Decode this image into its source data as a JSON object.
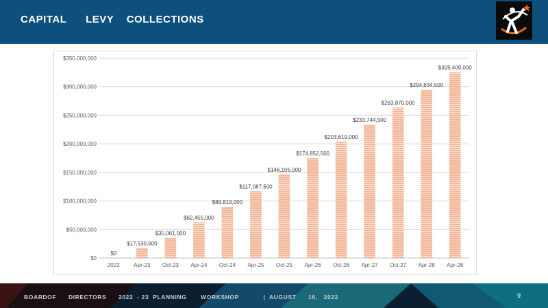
{
  "header": {
    "title": "CAPITAL      LEVY    COLLECTIONS"
  },
  "footer": {
    "text": "BOARDOF      DIRECTORS      2022  - 23  PLANNING       WORKSHOP            |  AUGUST      16,   2022",
    "page_number": "9"
  },
  "colors": {
    "header_bg": "#0d4f7d",
    "bar_fill": "#f2b596",
    "bar_stripe": "#ffffff",
    "footer_bg": "#0c1f30"
  },
  "chart_data": {
    "type": "bar",
    "title": "",
    "xlabel": "",
    "ylabel": "",
    "categories": [
      "2022",
      "Apr-23",
      "Oct-23",
      "Apr-24",
      "Oct-24",
      "Apr-25",
      "Oct-25",
      "Apr-26",
      "Oct-26",
      "Apr-27",
      "Oct-27",
      "Apr-28",
      "Apr-28"
    ],
    "values": [
      0,
      17530500,
      35061000,
      62455000,
      89819000,
      117087500,
      146105000,
      174852500,
      203619000,
      233744500,
      263870000,
      294634500,
      325409000
    ],
    "data_labels": [
      "$0",
      "$17,530,500",
      "$35,061,000",
      "$62,455,000",
      "$89,819,000",
      "$117,087,500",
      "$146,105,000",
      "$174,852,500",
      "$203,619,000",
      "$233,744,500",
      "$263,870,000",
      "$294,634,500",
      "$325,409,000"
    ],
    "ylim": [
      0,
      350000000
    ],
    "y_ticks": [
      0,
      50000000,
      100000000,
      150000000,
      200000000,
      250000000,
      300000000,
      350000000
    ],
    "y_tick_labels": [
      "$0",
      "$50,000,000",
      "$100,000,000",
      "$150,000,000",
      "$200,000,000",
      "$250,000,000",
      "$300,000,000",
      "$350,000,000"
    ],
    "grid": true,
    "legend": "none"
  }
}
